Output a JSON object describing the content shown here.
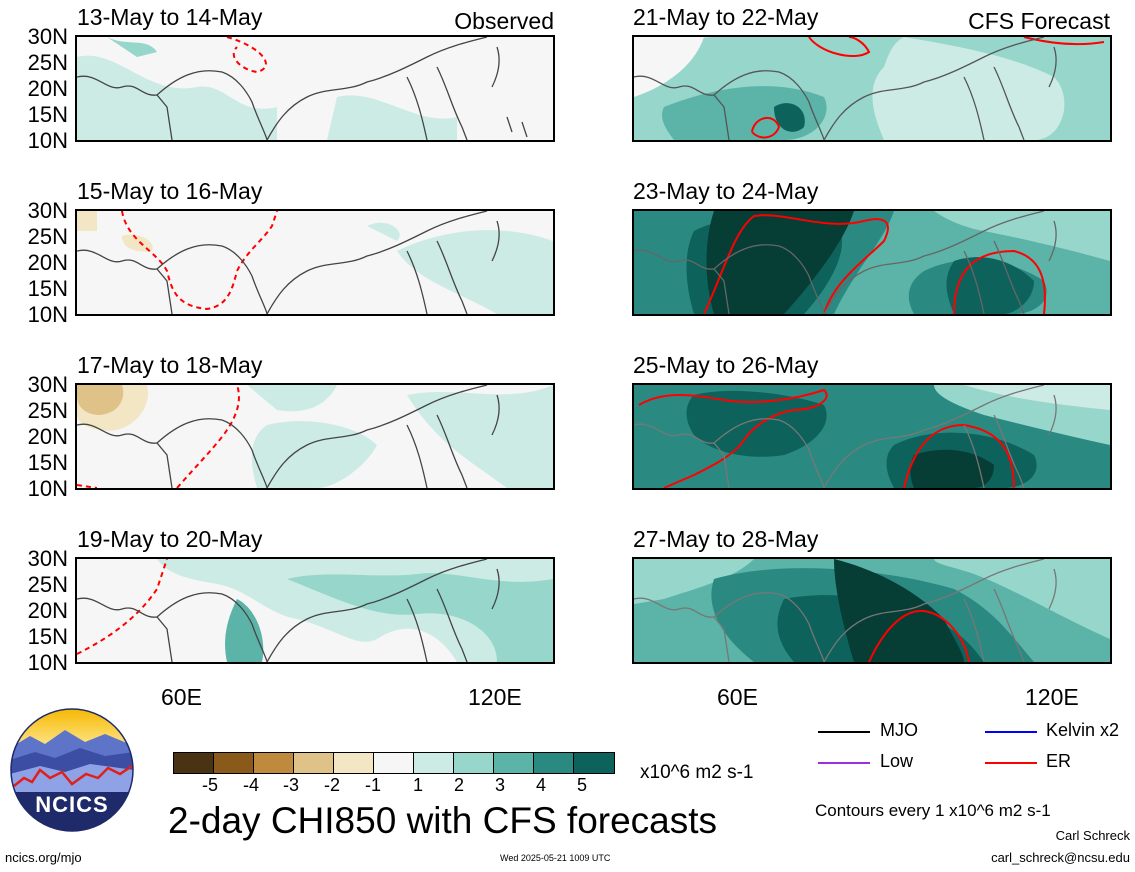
{
  "header": {
    "left_tag": "Observed",
    "right_tag": "CFS Forecast"
  },
  "panels": [
    {
      "title": "13-May to 14-May"
    },
    {
      "title": "15-May to 16-May"
    },
    {
      "title": "17-May to 18-May"
    },
    {
      "title": "19-May to 20-May"
    },
    {
      "title": "21-May to 22-May"
    },
    {
      "title": "23-May to 24-May"
    },
    {
      "title": "25-May to 26-May"
    },
    {
      "title": "27-May to 28-May"
    }
  ],
  "y_ticks": [
    "30N",
    "25N",
    "20N",
    "15N",
    "10N"
  ],
  "x_ticks": [
    "60E",
    "120E"
  ],
  "colorbar": {
    "colors": [
      "#4a3313",
      "#8a5a1a",
      "#c08a3e",
      "#dfc287",
      "#f3e6c5",
      "#f6f6f6",
      "#cdebe5",
      "#96d6cb",
      "#5cb3a8",
      "#2a8a82",
      "#0d625b",
      "#063d35"
    ],
    "labels": [
      "-5",
      "-4",
      "-3",
      "-2",
      "-1",
      "1",
      "2",
      "3",
      "4",
      "5"
    ],
    "units": "x10^6 m2 s-1"
  },
  "legend": {
    "items": [
      {
        "label": "MJO",
        "color": "#000000"
      },
      {
        "label": "Kelvin x2",
        "color": "#0000ff"
      },
      {
        "label": "Low",
        "color": "#9b30e0"
      },
      {
        "label": "ER",
        "color": "#ff0000"
      }
    ],
    "contour_note": "Contours every 1 x10^6 m2 s-1"
  },
  "footer": {
    "main_title": "2-day CHI850 with CFS forecasts",
    "logo_text": "NCICS",
    "url": "ncics.org/mjo",
    "timestamp": "Wed 2025-05-21 1009 UTC",
    "author": "Carl Schreck",
    "email": "carl_schreck@ncsu.edu"
  }
}
